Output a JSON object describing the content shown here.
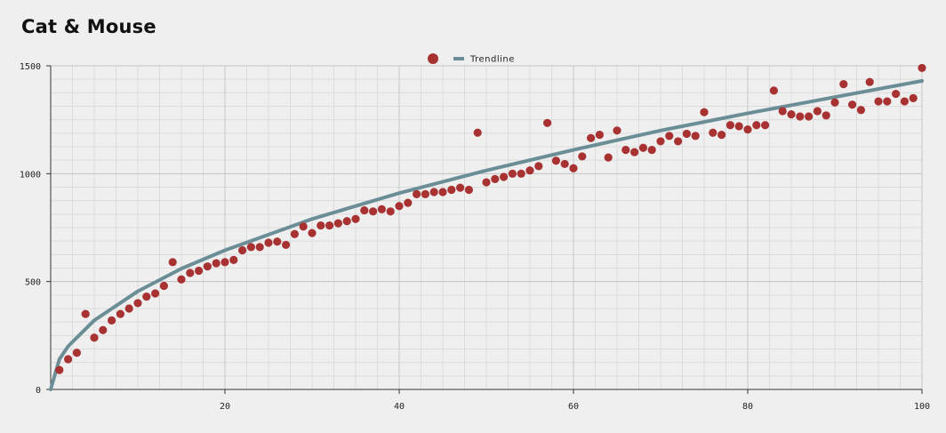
{
  "title": "Cat & Mouse",
  "colors": {
    "background": "#efefef",
    "scatter": "#a83232",
    "trendline": "#6b8e96",
    "grid_major": "#c4c4c4",
    "grid_minor": "#dcdcdc",
    "axis": "#333333"
  },
  "chart_data": {
    "type": "scatter",
    "title": "Cat & Mouse",
    "xlabel": "",
    "ylabel": "",
    "xlim": [
      0,
      100
    ],
    "ylim": [
      0,
      1500
    ],
    "x_ticks": [
      20,
      40,
      60,
      80,
      100
    ],
    "y_ticks": [
      0,
      500,
      1000,
      1500
    ],
    "grid": true,
    "legend": {
      "position": "top-center"
    },
    "series": [
      {
        "type": "scatter",
        "x": [
          1,
          2,
          3,
          4,
          5,
          6,
          7,
          8,
          9,
          10,
          11,
          12,
          13,
          14,
          15,
          16,
          17,
          18,
          19,
          20,
          21,
          22,
          23,
          24,
          25,
          26,
          27,
          28,
          29,
          30,
          31,
          32,
          33,
          34,
          35,
          36,
          37,
          38,
          39,
          40,
          41,
          42,
          43,
          44,
          45,
          46,
          47,
          48,
          49,
          50,
          51,
          52,
          53,
          54,
          55,
          56,
          57,
          58,
          59,
          60,
          61,
          62,
          63,
          64,
          65,
          66,
          67,
          68,
          69,
          70,
          71,
          72,
          73,
          74,
          75,
          76,
          77,
          78,
          79,
          80,
          81,
          82,
          83,
          84,
          85,
          86,
          87,
          88,
          89,
          90,
          91,
          92,
          93,
          94,
          95,
          96,
          97,
          98,
          99,
          100
        ],
        "y": [
          90,
          140,
          170,
          350,
          240,
          275,
          320,
          350,
          375,
          400,
          430,
          445,
          480,
          590,
          510,
          540,
          550,
          570,
          585,
          590,
          600,
          645,
          660,
          660,
          680,
          685,
          670,
          720,
          755,
          725,
          760,
          760,
          770,
          780,
          790,
          830,
          825,
          835,
          825,
          850,
          865,
          905,
          905,
          915,
          915,
          925,
          935,
          925,
          1190,
          960,
          975,
          985,
          1000,
          1000,
          1015,
          1035,
          1235,
          1060,
          1045,
          1025,
          1080,
          1165,
          1180,
          1075,
          1200,
          1110,
          1100,
          1120,
          1110,
          1150,
          1175,
          1150,
          1185,
          1175,
          1285,
          1190,
          1180,
          1225,
          1220,
          1205,
          1225,
          1225,
          1385,
          1290,
          1275,
          1265,
          1265,
          1290,
          1270,
          1330,
          1415,
          1320,
          1295,
          1425,
          1335,
          1335,
          1370,
          1335,
          1350,
          1490
        ]
      },
      {
        "name": "Trendline",
        "type": "line",
        "x": [
          0,
          1,
          2,
          5,
          10,
          15,
          20,
          30,
          40,
          50,
          60,
          70,
          80,
          90,
          100
        ],
        "y": [
          0,
          140,
          200,
          320,
          455,
          560,
          645,
          790,
          910,
          1015,
          1110,
          1200,
          1280,
          1355,
          1430
        ]
      }
    ]
  }
}
